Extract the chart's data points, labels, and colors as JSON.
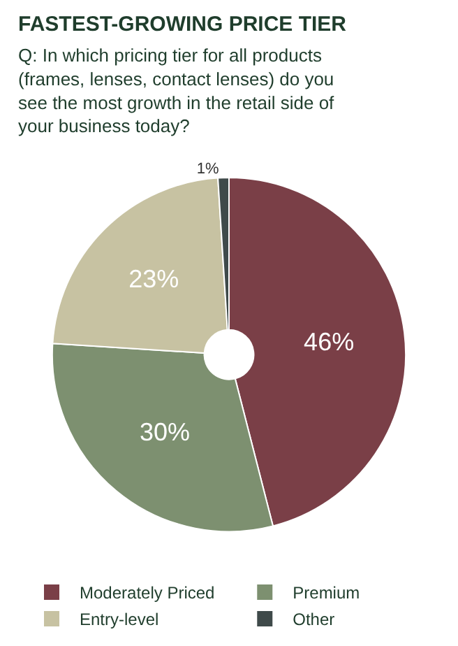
{
  "chart_data": {
    "type": "donut",
    "title": "FASTEST-GROWING PRICE TIER",
    "subtitle": "Q: In which pricing tier for all products (frames, lenses, contact lenses) do you see the most growth in the retail side of your business today?",
    "categories": [
      "Moderately Priced",
      "Premium",
      "Entry-level",
      "Other"
    ],
    "values": [
      46,
      30,
      23,
      1
    ],
    "value_labels": [
      "46%",
      "30%",
      "23%",
      "1%"
    ],
    "colors": [
      "#7a3f47",
      "#7d9070",
      "#c7c2a2",
      "#3f4a4a"
    ],
    "legend": "bottom"
  }
}
